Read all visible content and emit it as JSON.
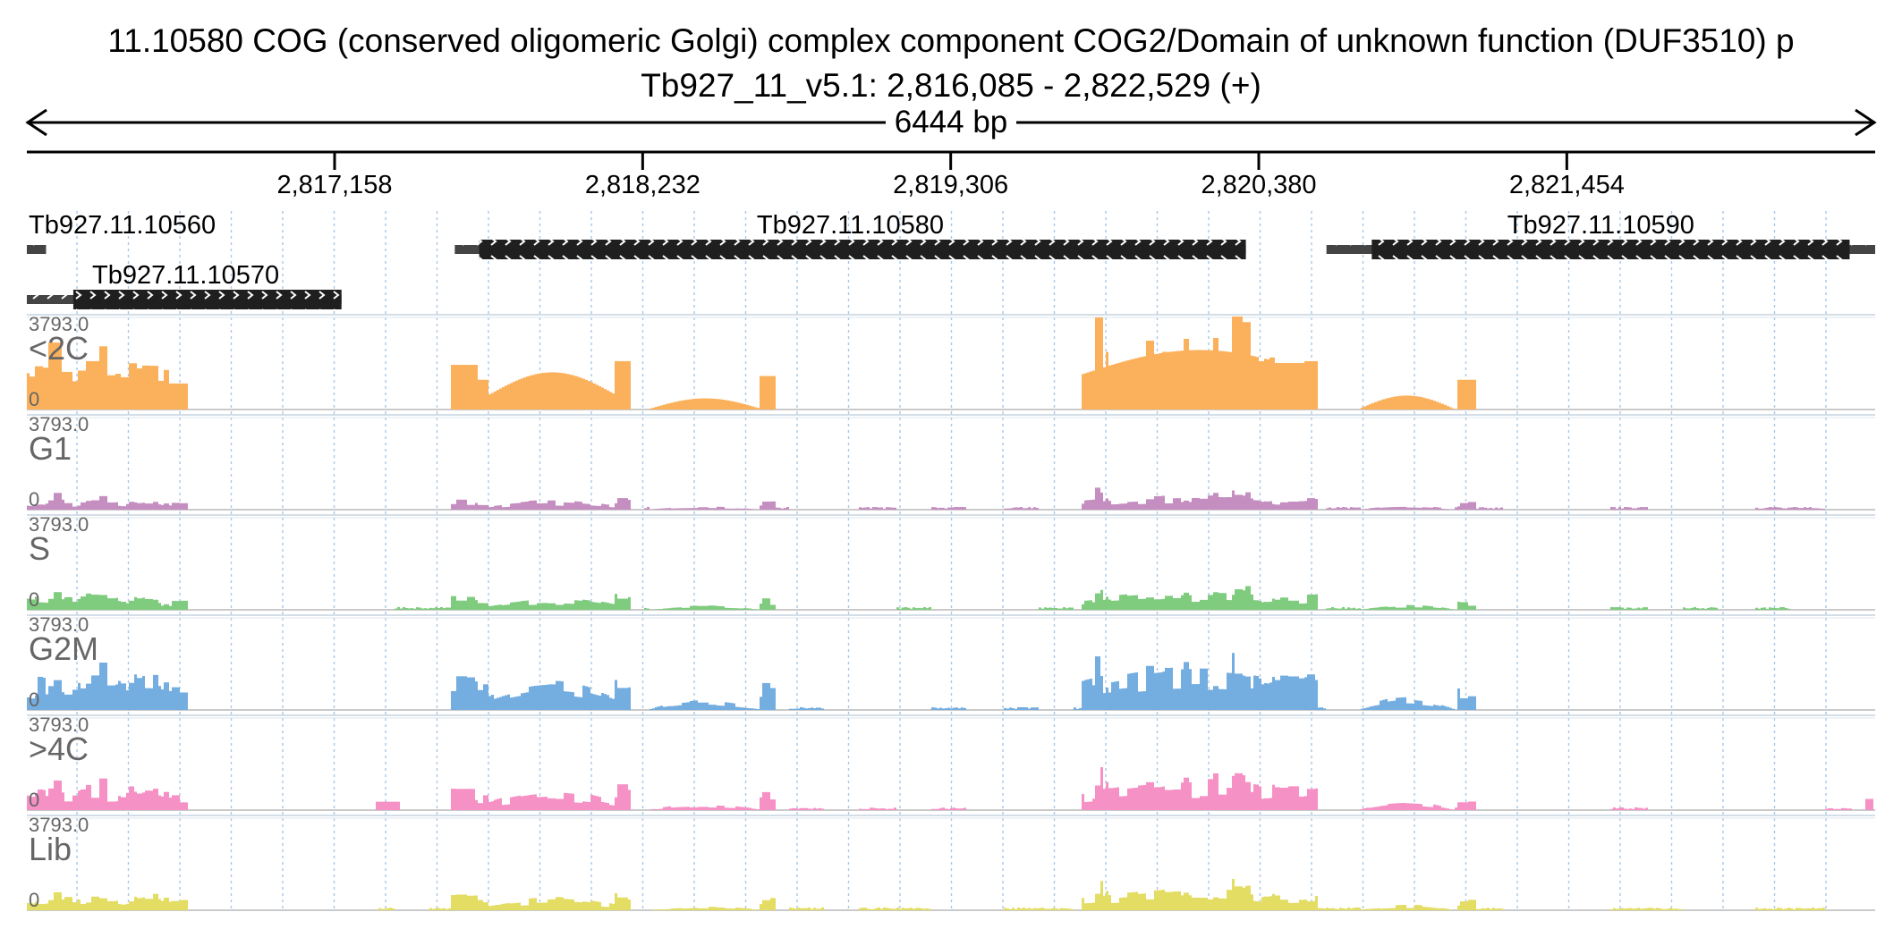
{
  "header": {
    "title": "11.10580  COG (conserved oligomeric Golgi) complex component  COG2/Domain of unknown function (DUF3510)  p",
    "locus": "Tb927_11_v5.1: 2,816,085 - 2,822,529 (+)",
    "span_label": "6444 bp"
  },
  "region": {
    "start": 2816085,
    "end": 2822529
  },
  "ruler": {
    "ticks": [
      {
        "pos": 2817158,
        "label": "2,817,158"
      },
      {
        "pos": 2818232,
        "label": "2,818,232"
      },
      {
        "pos": 2819306,
        "label": "2,819,306"
      },
      {
        "pos": 2820380,
        "label": "2,820,380"
      },
      {
        "pos": 2821454,
        "label": "2,821,454"
      }
    ]
  },
  "genes": [
    {
      "id": "Tb927.11.10560",
      "row": 0,
      "start": 2816085,
      "end": 2816152,
      "cds_start": 2816152,
      "cds_end": 2816152
    },
    {
      "id": "Tb927.11.10570",
      "row": 1,
      "start": 2816085,
      "end": 2817182,
      "cds_start": 2816247,
      "cds_end": 2817182
    },
    {
      "id": "Tb927.11.10580",
      "row": 0,
      "start": 2817577,
      "end": 2820335,
      "cds_start": 2817662,
      "cds_end": 2820335
    },
    {
      "id": "Tb927.11.10590",
      "row": 0,
      "start": 2820616,
      "end": 2822529,
      "cds_start": 2820774,
      "cds_end": 2822440
    }
  ],
  "coverage": {
    "max_label": "3793.0",
    "min_label": "0",
    "max_value": 3793,
    "tracks": [
      {
        "name": "<2C",
        "color": "#fbb15c",
        "scale": 1.0
      },
      {
        "name": "G1",
        "color": "#c58ec1",
        "scale": 0.17
      },
      {
        "name": "S",
        "color": "#7fcc7f",
        "scale": 0.22
      },
      {
        "name": "G2M",
        "color": "#74ade0",
        "scale": 0.55
      },
      {
        "name": ">4C",
        "color": "#f591c5",
        "scale": 0.35
      },
      {
        "name": "Lib",
        "color": "#e3dd64",
        "scale": 0.24
      }
    ]
  }
}
